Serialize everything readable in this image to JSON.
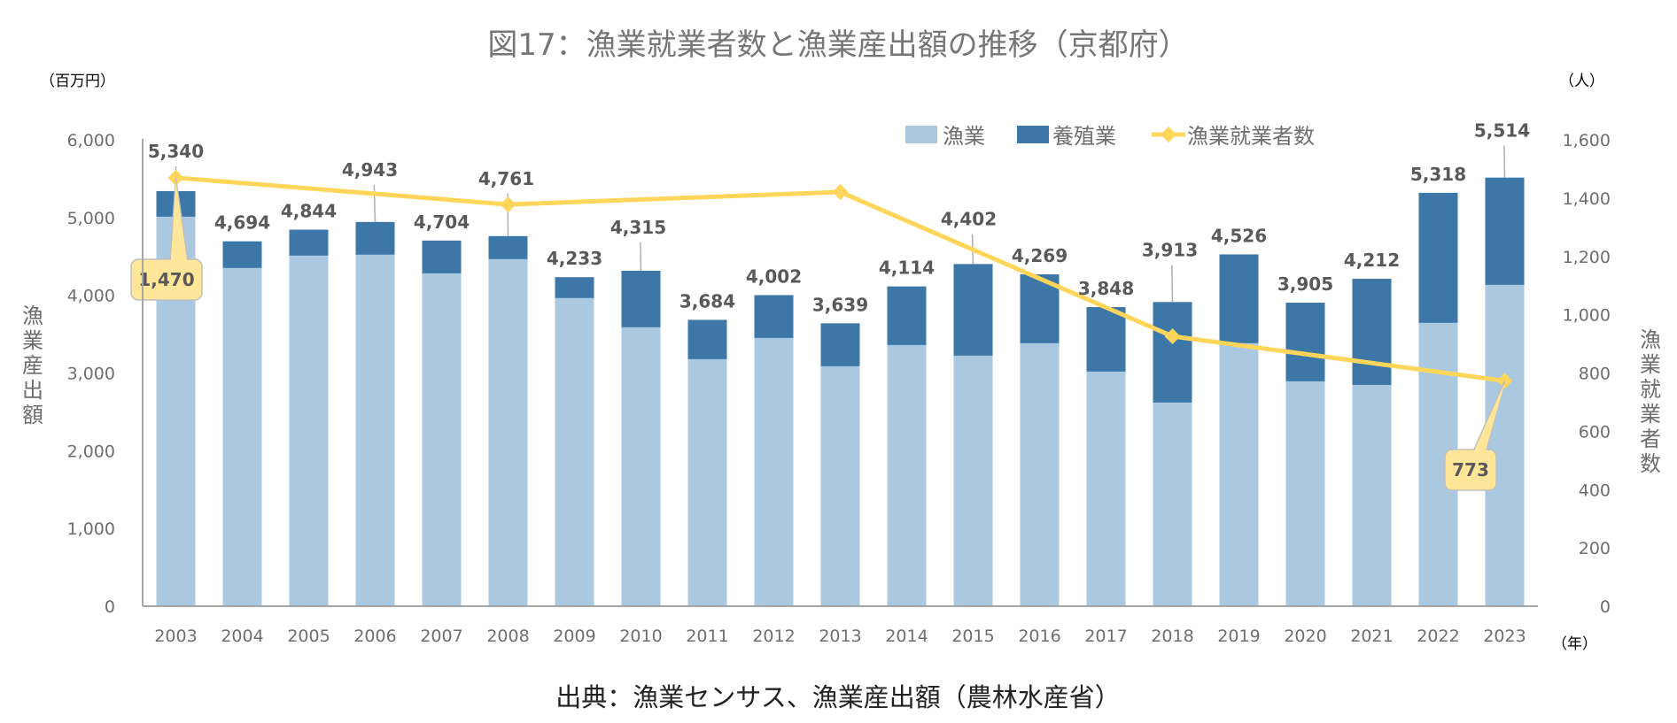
{
  "chart_data": {
    "type": "bar",
    "subtype": "stacked-bar-with-line",
    "title": "図17：漁業就業者数と漁業産出額の推移（京都府）",
    "categories": [
      "2003",
      "2004",
      "2005",
      "2006",
      "2007",
      "2008",
      "2009",
      "2010",
      "2011",
      "2012",
      "2013",
      "2014",
      "2015",
      "2016",
      "2017",
      "2018",
      "2019",
      "2020",
      "2021",
      "2022",
      "2023"
    ],
    "series": [
      {
        "name": "漁業",
        "type": "bar",
        "axis": "left",
        "color": "#abc8e1",
        "values": [
          5011,
          4351,
          4510,
          4522,
          4282,
          4465,
          3964,
          3588,
          3178,
          3451,
          3087,
          3360,
          3223,
          3383,
          3018,
          2620,
          3383,
          2893,
          2847,
          3645,
          4134
        ]
      },
      {
        "name": "養殖業",
        "type": "bar",
        "axis": "left",
        "color": "#3c77a8",
        "values": [
          329,
          343,
          334,
          421,
          422,
          296,
          269,
          727,
          506,
          551,
          552,
          754,
          1179,
          886,
          830,
          1293,
          1143,
          1012,
          1365,
          1673,
          1380
        ]
      },
      {
        "name": "漁業就業者数",
        "type": "line",
        "axis": "right",
        "color": "#ffd659",
        "x": [
          "2003",
          "2008",
          "2013",
          "2018",
          "2023"
        ],
        "values": [
          1470,
          1378,
          1421,
          926,
          773
        ]
      }
    ],
    "totals": [
      5340,
      4694,
      4844,
      4943,
      4704,
      4761,
      4233,
      4315,
      3684,
      4002,
      3639,
      4114,
      4402,
      4269,
      3848,
      3913,
      4526,
      3905,
      4212,
      5318,
      5514
    ],
    "total_labels": [
      "5,340",
      "4,694",
      "4,844",
      "4,943",
      "4,704",
      "4,761",
      "4,233",
      "4,315",
      "3,684",
      "4,002",
      "3,639",
      "4,114",
      "4,402",
      "4,269",
      "3,848",
      "3,913",
      "4,526",
      "3,905",
      "4,212",
      "5,318",
      "5,514"
    ],
    "callouts": [
      {
        "x": "2003",
        "label": "1,470"
      },
      {
        "x": "2023",
        "label": "773"
      }
    ],
    "left_axis": {
      "title": "漁業産出額",
      "unit": "（百万円）",
      "ylim": [
        0,
        6000
      ],
      "ticks": [
        0,
        1000,
        2000,
        3000,
        4000,
        5000,
        6000
      ],
      "tick_labels": [
        "0",
        "1,000",
        "2,000",
        "3,000",
        "4,000",
        "5,000",
        "6,000"
      ]
    },
    "right_axis": {
      "title": "漁業就業者数",
      "unit": "（人）",
      "ylim": [
        0,
        1600
      ],
      "ticks": [
        0,
        200,
        400,
        600,
        800,
        1000,
        1200,
        1400,
        1600
      ],
      "tick_labels": [
        "0",
        "200",
        "400",
        "600",
        "800",
        "1,000",
        "1,200",
        "1,400",
        "1,600"
      ]
    },
    "xlabel_unit": "（年）",
    "legend": {
      "placement": "top-right",
      "entries": [
        "漁業",
        "養殖業",
        "漁業就業者数"
      ]
    },
    "grid": false,
    "source": "出典：漁業センサス、漁業産出額（農林水産省）"
  }
}
